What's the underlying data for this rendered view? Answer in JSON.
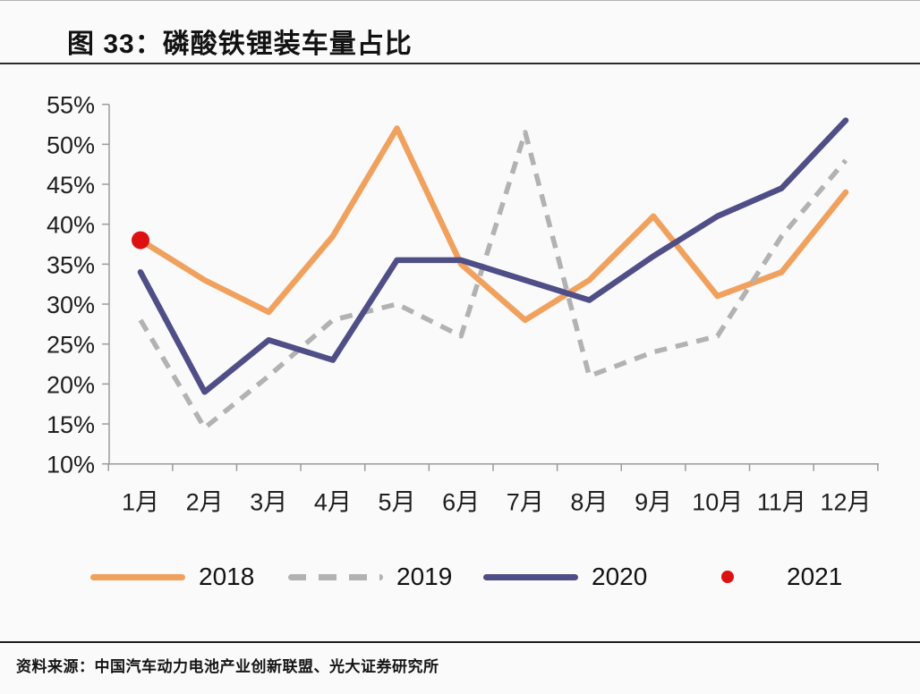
{
  "page": {
    "title": "图 33：磷酸铁锂装车量占比",
    "source_label": "资料来源：",
    "source_text": "中国汽车动力电池产业创新联盟、光大证券研究所"
  },
  "chart_data": {
    "type": "line",
    "title": "图 33：磷酸铁锂装车量占比",
    "categories": [
      "1月",
      "2月",
      "3月",
      "4月",
      "5月",
      "6月",
      "7月",
      "8月",
      "9月",
      "10月",
      "11月",
      "12月"
    ],
    "y_ticks": [
      "55%",
      "50%",
      "45%",
      "40%",
      "35%",
      "30%",
      "25%",
      "20%",
      "15%",
      "10%"
    ],
    "ylim": [
      10,
      55
    ],
    "y_tick_step": 5,
    "grid": false,
    "legend_position": "bottom",
    "unit": "percent",
    "series": [
      {
        "name": "2018",
        "color": "#F1A15E",
        "style": "solid",
        "values": [
          38,
          33,
          29,
          38.5,
          52,
          35,
          28,
          33,
          41,
          31,
          34,
          44
        ]
      },
      {
        "name": "2019",
        "color": "#B2B2B2",
        "style": "dashed",
        "values": [
          28,
          14.5,
          21,
          28,
          30,
          26,
          51.5,
          21,
          24,
          26,
          38.5,
          48
        ]
      },
      {
        "name": "2020",
        "color": "#4F4E86",
        "style": "solid",
        "values": [
          34,
          19,
          25.5,
          23,
          35.5,
          35.5,
          33,
          30.5,
          36,
          41,
          44.5,
          53
        ]
      },
      {
        "name": "2021",
        "color": "#DD1111",
        "style": "point",
        "values": [
          38,
          null,
          null,
          null,
          null,
          null,
          null,
          null,
          null,
          null,
          null,
          null
        ]
      }
    ]
  }
}
